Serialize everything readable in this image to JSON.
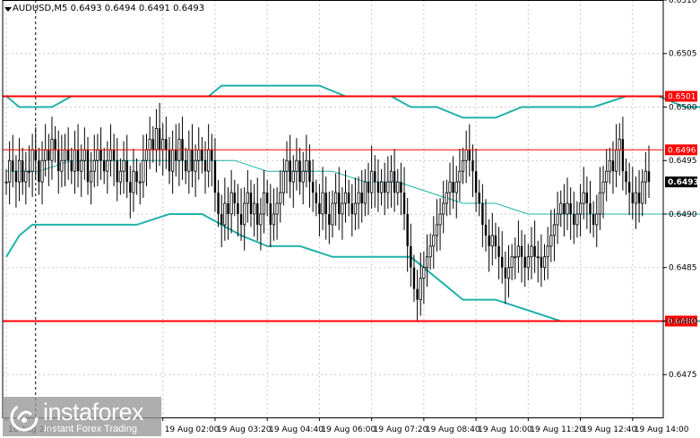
{
  "header": {
    "symbol_line": "AUDUSD,M5  0.6493 0.6494 0.6491 0.6493"
  },
  "watermark": {
    "brand": "instaforex",
    "tagline": "Instant Forex Trading"
  },
  "colors": {
    "candle": "#000000",
    "bollinger": "#20b2aa",
    "support_resistance": "#ff0000",
    "price_tag_bg": "#ff0000",
    "current_tag_bg": "#000000",
    "grid": "#c8c8c8",
    "background": "#ffffff"
  },
  "chart_data": {
    "type": "candlestick",
    "symbol": "AUDUSD",
    "timeframe": "M5",
    "current_price": "0.6493",
    "ylim": [
      0.6471,
      0.651
    ],
    "y_ticks": [
      "0.6510",
      "0.6505",
      "0.6500",
      "0.6495",
      "0.6490",
      "0.6485",
      "0.6480",
      "0.6475"
    ],
    "x_ticks": [
      {
        "label": "18 Aug 2022",
        "index": 0
      },
      {
        "label": "19 Aug 02:00",
        "index": 48
      },
      {
        "label": "19 Aug 03:20",
        "index": 64
      },
      {
        "label": "19 Aug 04:40",
        "index": 80
      },
      {
        "label": "19 Aug 06:00",
        "index": 96
      },
      {
        "label": "19 Aug 07:20",
        "index": 112
      },
      {
        "label": "19 Aug 08:40",
        "index": 128
      },
      {
        "label": "19 Aug 10:00",
        "index": 144
      },
      {
        "label": "19 Aug 11:20",
        "index": 160
      },
      {
        "label": "19 Aug 12:40",
        "index": 176
      },
      {
        "label": "19 Aug 14:00",
        "index": 192
      }
    ],
    "grid": true,
    "levels": [
      {
        "price": "0.6501",
        "value": 0.6501,
        "style": "thick"
      },
      {
        "price": "0.6496",
        "value": 0.6496,
        "style": "thin"
      },
      {
        "price": "0.6480",
        "value": 0.648,
        "style": "thick"
      }
    ],
    "day_separator_index": 9,
    "candles_close": [
      0.6493,
      0.6495,
      0.6494,
      0.6493,
      0.6495,
      0.6493,
      0.6494,
      0.6494,
      0.6496,
      0.6495,
      0.6493,
      0.6495,
      0.6496,
      0.6495,
      0.6497,
      0.6496,
      0.6494,
      0.6495,
      0.6496,
      0.6495,
      0.6494,
      0.6496,
      0.6494,
      0.6495,
      0.6496,
      0.6493,
      0.6494,
      0.6495,
      0.6496,
      0.6495,
      0.6494,
      0.6495,
      0.6496,
      0.6495,
      0.6493,
      0.6494,
      0.6495,
      0.6493,
      0.6492,
      0.6494,
      0.6493,
      0.6493,
      0.6495,
      0.6496,
      0.6497,
      0.6496,
      0.6498,
      0.6496,
      0.6497,
      0.6496,
      0.6494,
      0.6496,
      0.6495,
      0.6497,
      0.6495,
      0.6494,
      0.6496,
      0.6494,
      0.6495,
      0.6496,
      0.6495,
      0.6494,
      0.6496,
      0.6495,
      0.6492,
      0.649,
      0.6489,
      0.6491,
      0.649,
      0.6492,
      0.6491,
      0.649,
      0.6489,
      0.6491,
      0.6492,
      0.649,
      0.6491,
      0.6489,
      0.649,
      0.6492,
      0.6491,
      0.6489,
      0.649,
      0.6491,
      0.6492,
      0.6494,
      0.6495,
      0.6493,
      0.6494,
      0.6495,
      0.6493,
      0.6494,
      0.6495,
      0.6493,
      0.6492,
      0.6491,
      0.649,
      0.6492,
      0.649,
      0.6489,
      0.6491,
      0.6492,
      0.649,
      0.6491,
      0.6492,
      0.6491,
      0.649,
      0.6491,
      0.6492,
      0.6491,
      0.6493,
      0.6492,
      0.6494,
      0.6493,
      0.6492,
      0.6493,
      0.6492,
      0.6493,
      0.6494,
      0.6492,
      0.6493,
      0.6492,
      0.649,
      0.6487,
      0.6485,
      0.6483,
      0.6482,
      0.6484,
      0.6485,
      0.6486,
      0.6487,
      0.6488,
      0.6489,
      0.649,
      0.6491,
      0.6492,
      0.6493,
      0.6492,
      0.6493,
      0.6494,
      0.6495,
      0.6496,
      0.6495,
      0.6494,
      0.6492,
      0.6491,
      0.6489,
      0.6488,
      0.6487,
      0.6488,
      0.6487,
      0.6486,
      0.6485,
      0.6484,
      0.6485,
      0.6486,
      0.6486,
      0.6487,
      0.6486,
      0.6485,
      0.6486,
      0.6487,
      0.6486,
      0.6486,
      0.6485,
      0.6486,
      0.6487,
      0.6488,
      0.6489,
      0.649,
      0.6491,
      0.649,
      0.6491,
      0.649,
      0.6489,
      0.649,
      0.6491,
      0.6492,
      0.6491,
      0.649,
      0.6489,
      0.649,
      0.6492,
      0.6493,
      0.6494,
      0.6495,
      0.6494,
      0.6496,
      0.6497,
      0.6494,
      0.6493,
      0.6492,
      0.6491,
      0.6492,
      0.6491,
      0.6493,
      0.6494,
      0.6493
    ],
    "bollinger_upper": [
      [
        0,
        0.6501
      ],
      [
        4,
        0.65
      ],
      [
        8,
        0.65
      ],
      [
        14,
        0.65
      ],
      [
        20,
        0.6501
      ],
      [
        30,
        0.6501
      ],
      [
        40,
        0.6501
      ],
      [
        52,
        0.6501
      ],
      [
        60,
        0.6501
      ],
      [
        62,
        0.6501
      ],
      [
        66,
        0.6502
      ],
      [
        72,
        0.6502
      ],
      [
        78,
        0.6502
      ],
      [
        90,
        0.6502
      ],
      [
        96,
        0.6502
      ],
      [
        104,
        0.6501
      ],
      [
        118,
        0.6501
      ],
      [
        124,
        0.65
      ],
      [
        132,
        0.65
      ],
      [
        140,
        0.6499
      ],
      [
        150,
        0.6499
      ],
      [
        158,
        0.65
      ],
      [
        164,
        0.65
      ],
      [
        172,
        0.65
      ],
      [
        180,
        0.65
      ],
      [
        190,
        0.6501
      ],
      [
        200,
        0.6501
      ],
      [
        208,
        0.65
      ],
      [
        212,
        0.65
      ],
      [
        214,
        0.65
      ],
      [
        218,
        0.65
      ]
    ],
    "bollinger_middle": [
      [
        0,
        0.6494
      ],
      [
        10,
        0.6494
      ],
      [
        20,
        0.6495
      ],
      [
        30,
        0.6495
      ],
      [
        40,
        0.6495
      ],
      [
        50,
        0.6495
      ],
      [
        60,
        0.6495
      ],
      [
        70,
        0.6495
      ],
      [
        80,
        0.6494
      ],
      [
        90,
        0.6494
      ],
      [
        100,
        0.6494
      ],
      [
        110,
        0.6493
      ],
      [
        120,
        0.6493
      ],
      [
        130,
        0.6492
      ],
      [
        140,
        0.6491
      ],
      [
        150,
        0.6491
      ],
      [
        160,
        0.649
      ],
      [
        170,
        0.649
      ],
      [
        180,
        0.649
      ],
      [
        190,
        0.649
      ],
      [
        200,
        0.649
      ],
      [
        210,
        0.649
      ],
      [
        218,
        0.649
      ]
    ],
    "bollinger_lower": [
      [
        0,
        0.6486
      ],
      [
        4,
        0.6488
      ],
      [
        8,
        0.6489
      ],
      [
        20,
        0.6489
      ],
      [
        40,
        0.6489
      ],
      [
        50,
        0.649
      ],
      [
        60,
        0.649
      ],
      [
        66,
        0.6489
      ],
      [
        72,
        0.6488
      ],
      [
        80,
        0.6487
      ],
      [
        90,
        0.6487
      ],
      [
        100,
        0.6486
      ],
      [
        110,
        0.6486
      ],
      [
        118,
        0.6486
      ],
      [
        124,
        0.6486
      ],
      [
        132,
        0.6484
      ],
      [
        140,
        0.6482
      ],
      [
        150,
        0.6482
      ],
      [
        160,
        0.6481
      ],
      [
        170,
        0.648
      ],
      [
        180,
        0.648
      ],
      [
        190,
        0.648
      ],
      [
        200,
        0.648
      ],
      [
        206,
        0.648
      ],
      [
        210,
        0.648
      ],
      [
        214,
        0.648
      ],
      [
        218,
        0.6481
      ]
    ]
  }
}
